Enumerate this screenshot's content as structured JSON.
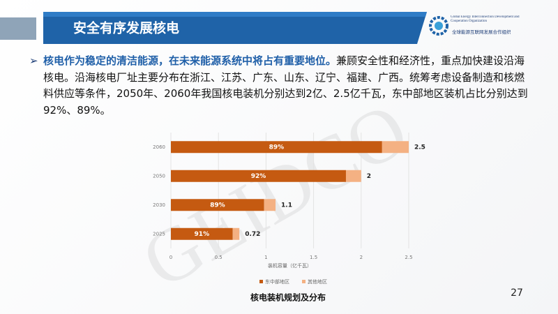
{
  "header": {
    "title": "安全有序发展核电",
    "org_en": "Global Energy Interconnection Development and Cooperation Organization",
    "org_cn": "全球能源互联网发展合作组织"
  },
  "body": {
    "emphasis": "核电作为稳定的清洁能源，在未来能源系统中将占有重要地位。",
    "text": "兼顾安全性和经济性，重点加快建设沿海核电。沿海核电厂址主要分布在浙江、江苏、广东、山东、辽宁、福建、广西。统筹考虑设备制造和核燃料供应等条件，2050年、2060年我国核电装机分别达到2亿、2.5亿千瓦，东中部地区装机占比分别达到92%、89%。"
  },
  "watermark": "GEIDCO",
  "chart_data": {
    "type": "stacked-bar-horizontal",
    "categories": [
      "2060",
      "2050",
      "2030",
      "2025"
    ],
    "series": [
      {
        "name": "东中部地区",
        "color": "#c55a11",
        "values": [
          2.22,
          1.84,
          0.98,
          0.65
        ],
        "value_labels": [
          "89%",
          "92%",
          "89%",
          "91%"
        ]
      },
      {
        "name": "其他地区",
        "color": "#f4b183",
        "values": [
          0.28,
          0.16,
          0.12,
          0.07
        ]
      }
    ],
    "totals": [
      2.5,
      2,
      1.1,
      0.72
    ],
    "xlim": [
      0,
      2.5
    ],
    "xticks": [
      0,
      0.5,
      1,
      1.5,
      2,
      2.5
    ],
    "grid": true,
    "x_label": "装机容量（亿千瓦）",
    "legend": "bottom"
  },
  "caption": "核电装机规划及分布",
  "page_number": "27"
}
